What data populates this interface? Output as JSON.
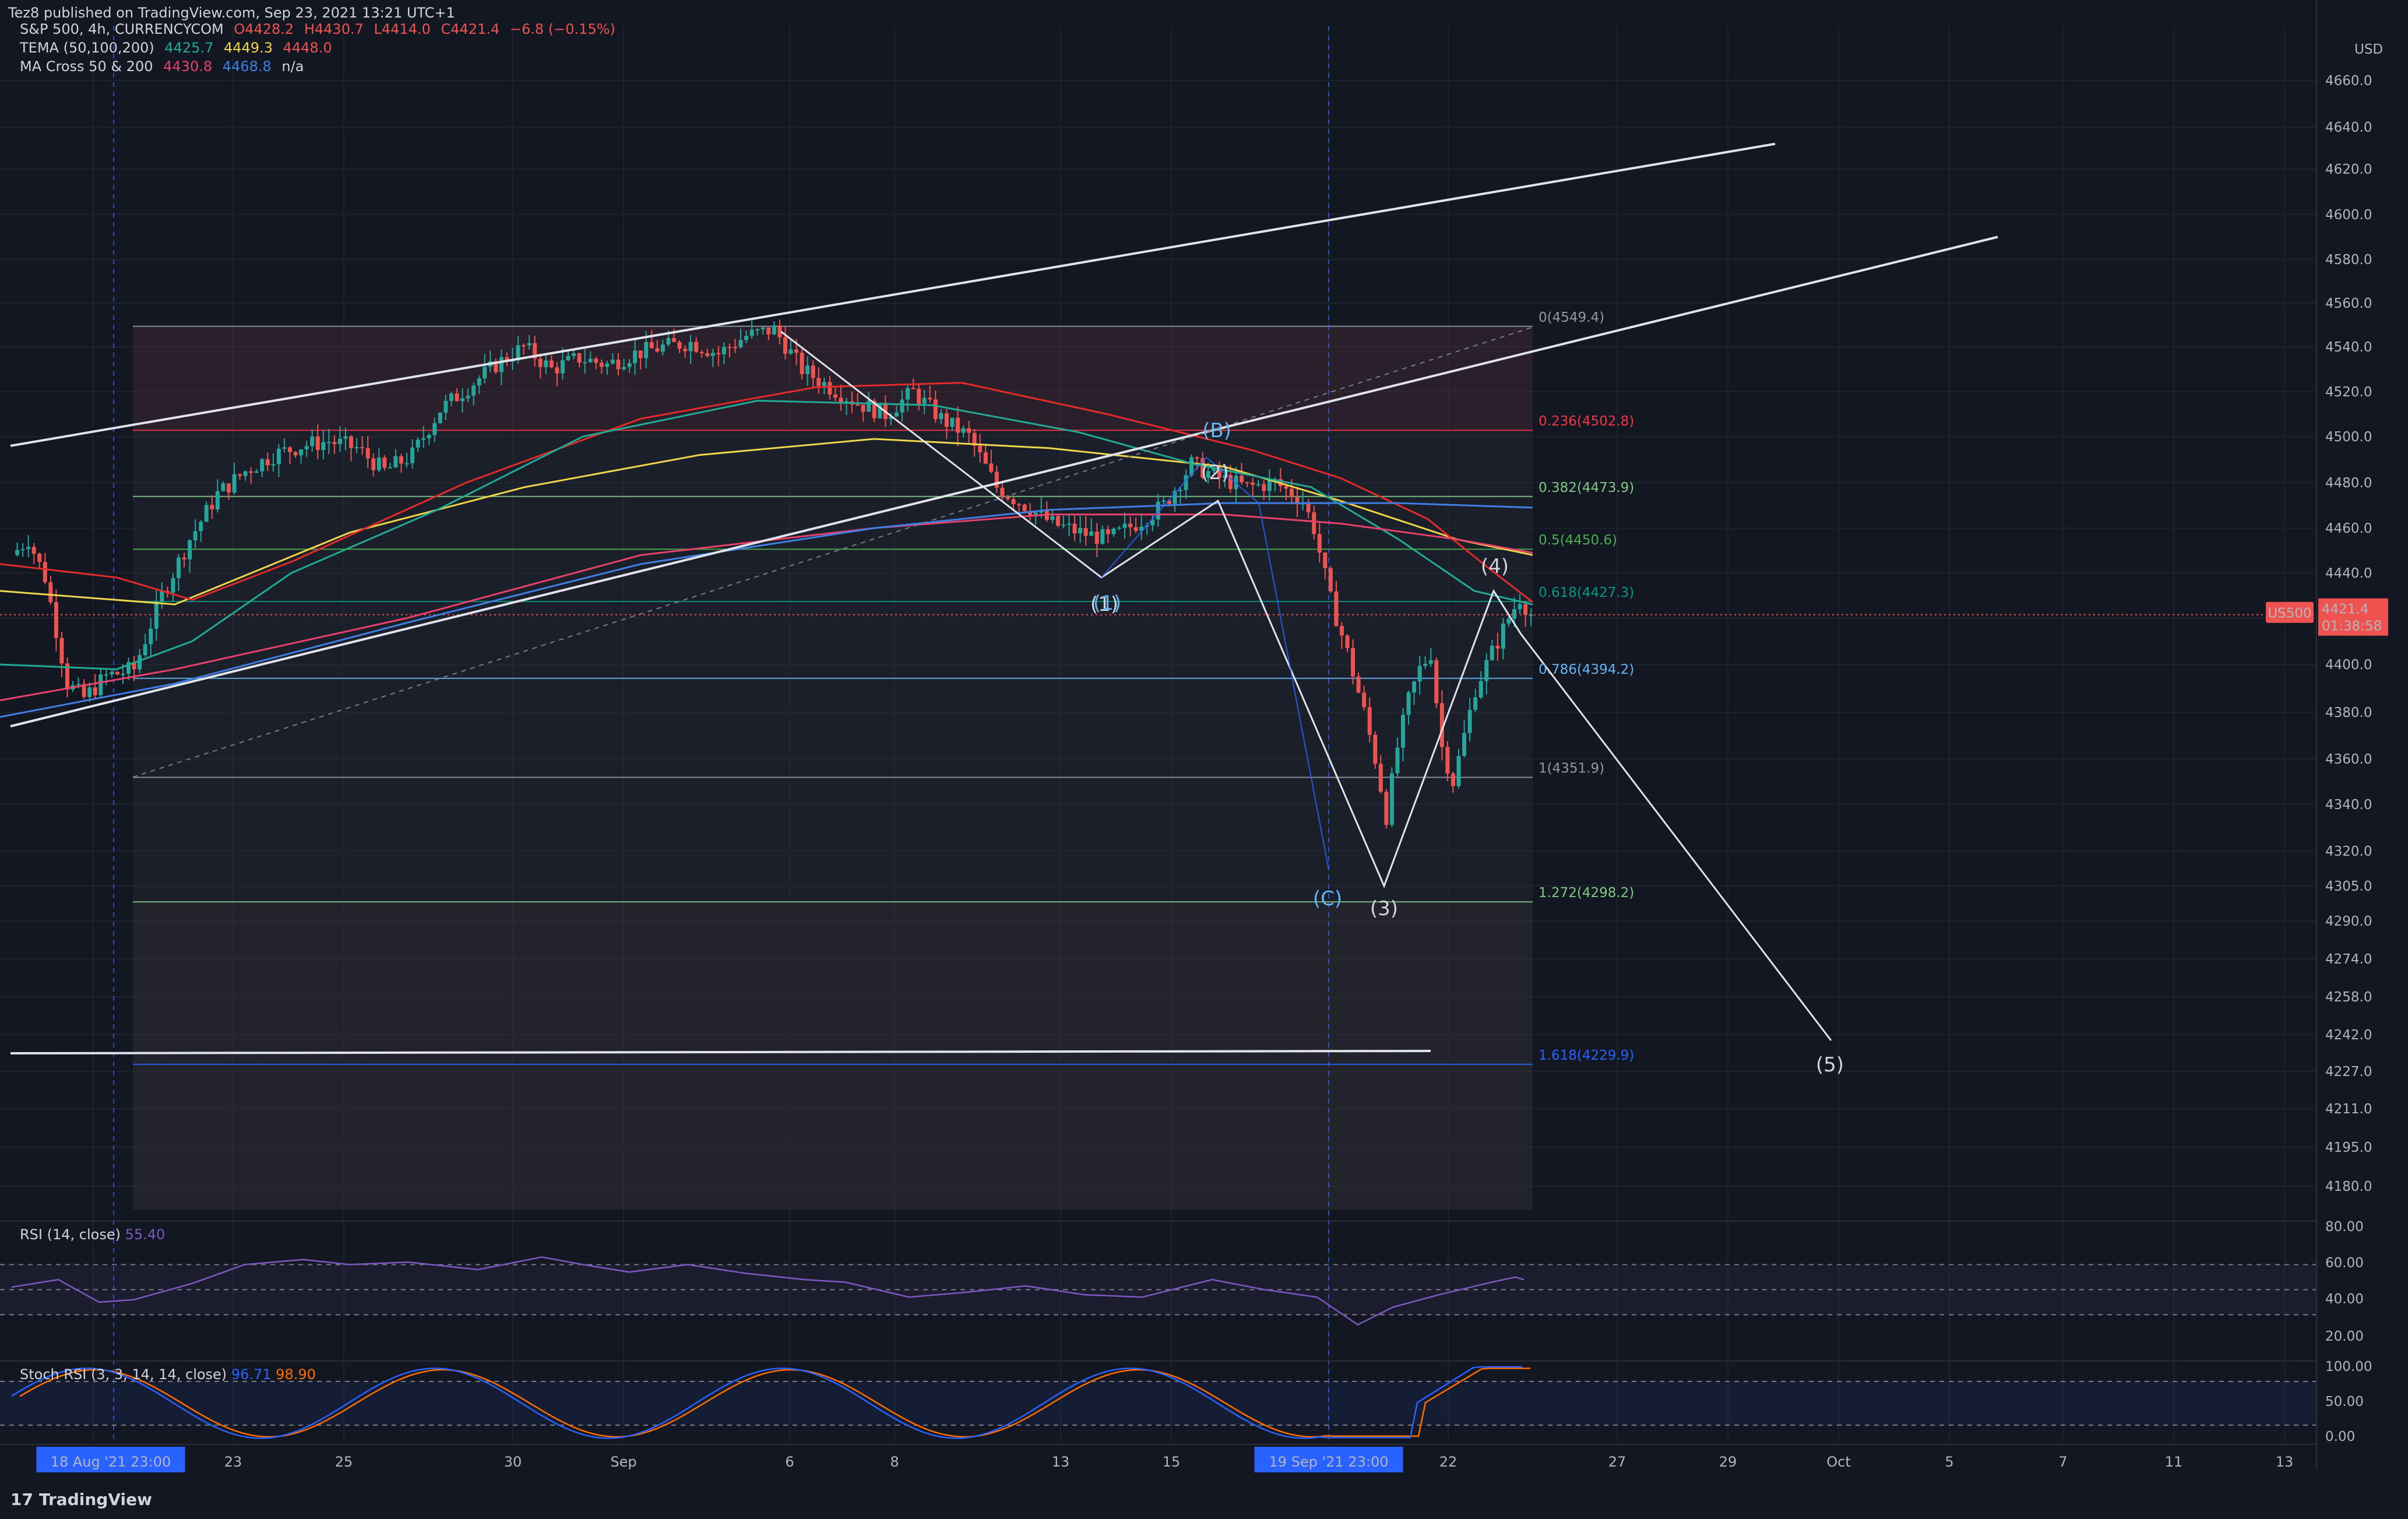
{
  "header": {
    "published": "Tez8 published on TradingView.com, Sep 23, 2021 13:21 UTC+1"
  },
  "legend": {
    "symbol": "S&P 500, 4h, CURRENCYCOM",
    "open": "O4428.2",
    "high": "H4430.7",
    "low": "L4414.0",
    "close": "C4421.4",
    "change": "−6.8 (−0.15%)",
    "tema_label": "TEMA (50,100,200)",
    "tema_v1": "4425.7",
    "tema_v2": "4449.3",
    "tema_v3": "4448.0",
    "ma_label": "MA Cross 50 & 200",
    "ma_v1": "4430.8",
    "ma_v2": "4468.8",
    "ma_v3": "n/a"
  },
  "price_badge": {
    "symbol": "US500",
    "price": "4421.4",
    "countdown": "01:38:58",
    "currency": "USD"
  },
  "rsi": {
    "label": "RSI (14, close)",
    "value": "55.40",
    "axis": [
      "80.00",
      "60.00",
      "40.00",
      "20.00"
    ]
  },
  "stoch": {
    "label": "Stoch RSI (3, 3, 14, 14, close)",
    "k": "96.71",
    "d": "98.90",
    "axis": [
      "100.00",
      "50.00",
      "0.00"
    ]
  },
  "footer": {
    "brand": "TradingView"
  },
  "colors": {
    "background": "#131722",
    "up": "#26a69a",
    "down": "#ef5350",
    "tema1": "#22ab94",
    "tema2": "#f0d64a",
    "tema3": "#e52a2a",
    "ma1": "#e8416b",
    "ma2": "#3f7fe6",
    "rsi": "#7e57c2",
    "stoch_k": "#2962ff",
    "stoch_d": "#ff6d00"
  },
  "chart_data": {
    "type": "candlestick",
    "title": "S&P 500, 4h, CURRENCYCOM",
    "ylim": [
      4170,
      4680
    ],
    "y_ticks": [
      4660.0,
      4640.0,
      4620.0,
      4600.0,
      4580.0,
      4560.0,
      4540.0,
      4520.0,
      4500.0,
      4480.0,
      4460.0,
      4440.0,
      4420.0,
      4400.0,
      4380.0,
      4360.0,
      4340.0,
      4320.0,
      4305.0,
      4290.0,
      4274.0,
      4258.0,
      4242.0,
      4227.0,
      4211.0,
      4195.0,
      4180.0
    ],
    "x_ticks": [
      "18 Aug '21  23:00",
      "23",
      "25",
      "30",
      "Sep",
      "6",
      "8",
      "13",
      "15",
      "19 Sep '21  23:00",
      "22",
      "27",
      "29",
      "Oct",
      "5",
      "7",
      "11",
      "13"
    ],
    "last_price": 4421.4,
    "price_path": [
      [
        0,
        4448
      ],
      [
        3,
        4455
      ],
      [
        6,
        4438
      ],
      [
        10,
        4392
      ],
      [
        13,
        4386
      ],
      [
        17,
        4395
      ],
      [
        22,
        4398
      ],
      [
        27,
        4430
      ],
      [
        32,
        4455
      ],
      [
        37,
        4475
      ],
      [
        42,
        4485
      ],
      [
        47,
        4492
      ],
      [
        52,
        4496
      ],
      [
        57,
        4498
      ],
      [
        62,
        4495
      ],
      [
        67,
        4485
      ],
      [
        72,
        4492
      ],
      [
        77,
        4512
      ],
      [
        82,
        4522
      ],
      [
        87,
        4532
      ],
      [
        92,
        4540
      ],
      [
        97,
        4530
      ],
      [
        102,
        4535
      ],
      [
        107,
        4532
      ],
      [
        112,
        4537
      ],
      [
        117,
        4540
      ],
      [
        122,
        4542
      ],
      [
        127,
        4537
      ],
      [
        132,
        4545
      ],
      [
        137,
        4548
      ],
      [
        142,
        4530
      ],
      [
        147,
        4522
      ],
      [
        152,
        4515
      ],
      [
        157,
        4510
      ],
      [
        162,
        4520
      ],
      [
        167,
        4508
      ],
      [
        172,
        4500
      ],
      [
        177,
        4478
      ],
      [
        182,
        4470
      ],
      [
        187,
        4462
      ],
      [
        192,
        4458
      ],
      [
        197,
        4455
      ],
      [
        202,
        4462
      ],
      [
        207,
        4470
      ],
      [
        212,
        4488
      ],
      [
        217,
        4482
      ],
      [
        222,
        4478
      ],
      [
        227,
        4480
      ],
      [
        232,
        4472
      ],
      [
        234,
        4460
      ],
      [
        237,
        4428
      ],
      [
        240,
        4405
      ],
      [
        243,
        4380
      ],
      [
        245,
        4360
      ],
      [
        247,
        4335
      ],
      [
        249,
        4365
      ],
      [
        251,
        4385
      ],
      [
        253,
        4398
      ],
      [
        255,
        4405
      ],
      [
        257,
        4365
      ],
      [
        259,
        4350
      ],
      [
        261,
        4370
      ],
      [
        263,
        4390
      ],
      [
        265,
        4400
      ],
      [
        267,
        4410
      ],
      [
        269,
        4420
      ],
      [
        271,
        4429
      ],
      [
        273,
        4421.4
      ]
    ],
    "fibonacci": [
      {
        "level": "0",
        "price": 4549.4,
        "label": "0(4549.4)",
        "color": "#9598a1"
      },
      {
        "level": "0.236",
        "price": 4502.8,
        "label": "0.236(4502.8)",
        "color": "#f23645"
      },
      {
        "level": "0.382",
        "price": 4473.9,
        "label": "0.382(4473.9)",
        "color": "#81c784"
      },
      {
        "level": "0.5",
        "price": 4450.6,
        "label": "0.5(4450.6)",
        "color": "#4caf50"
      },
      {
        "level": "0.618",
        "price": 4427.3,
        "label": "0.618(4427.3)",
        "color": "#089981"
      },
      {
        "level": "0.786",
        "price": 4394.2,
        "label": "0.786(4394.2)",
        "color": "#64b5f6"
      },
      {
        "level": "1",
        "price": 4351.9,
        "label": "1(4351.9)",
        "color": "#9598a1"
      },
      {
        "level": "1.272",
        "price": 4298.2,
        "label": "1.272(4298.2)",
        "color": "#81c784"
      },
      {
        "level": "1.618",
        "price": 4229.9,
        "label": "1.618(4229.9)",
        "color": "#2962ff"
      }
    ],
    "wave_labels": [
      {
        "text": "(1)",
        "color": "#d1d4dc"
      },
      {
        "text": "(2)",
        "color": "#d1d4dc"
      },
      {
        "text": "(3)",
        "color": "#d1d4dc"
      },
      {
        "text": "(4)",
        "color": "#d1d4dc"
      },
      {
        "text": "(5)",
        "color": "#d1d4dc"
      },
      {
        "text": "(1)",
        "color": "#64b5f6"
      },
      {
        "text": "(B)",
        "color": "#64b5f6"
      },
      {
        "text": "(C)",
        "color": "#64b5f6"
      }
    ],
    "rsi_range": [
      0,
      100
    ],
    "stoch_range": [
      0,
      100
    ]
  }
}
